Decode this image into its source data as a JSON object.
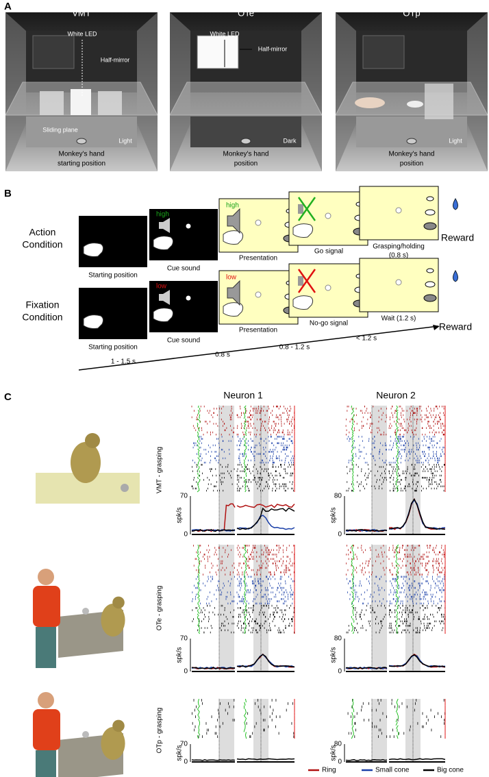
{
  "panel_a": {
    "label": "A",
    "boxes": [
      {
        "title": "VMT",
        "led": "White LED",
        "mirror": "Half-mirror",
        "plane": "Sliding plane",
        "light": "Light",
        "hand": [
          "Monkey's hand",
          "starting position"
        ]
      },
      {
        "title": "OTe",
        "led": "White LED",
        "mirror": "Half-mirror",
        "light": "Dark",
        "hand": [
          "Monkey's hand",
          "position"
        ]
      },
      {
        "title": "OTp",
        "light": "Light",
        "hand": [
          "Monkey's hand",
          "position"
        ]
      }
    ]
  },
  "panel_b": {
    "label": "B",
    "action": [
      "Action",
      "Condition"
    ],
    "fixation": [
      "Fixation",
      "Condition"
    ],
    "action_steps": [
      "Starting position",
      "Cue sound",
      "Presentation",
      "Go signal",
      "Grasping/holding",
      "(0.8 s)"
    ],
    "fixation_steps": [
      "Starting position",
      "Cue sound",
      "Presentation",
      "No-go signal",
      "Wait (1.2 s)"
    ],
    "cue_action": "high",
    "cue_fixation": "low",
    "reward": "Reward",
    "timeline": [
      "1 - 1.5 s",
      "0.8 s",
      "0.8 - 1.2 s",
      "< 1.2 s"
    ]
  },
  "panel_c": {
    "label": "C",
    "neurons": [
      {
        "title": "Neuron 1",
        "yticks": [
          "70",
          "0"
        ]
      },
      {
        "title": "Neuron 2",
        "yticks": [
          "80",
          "0"
        ]
      }
    ],
    "rows": [
      "VMT - grasping",
      "OTe - grasping",
      "OTp - grasping"
    ],
    "y_label": "spk/s",
    "legend": [
      "Ring",
      "Small cone",
      "Big cone"
    ]
  }
}
